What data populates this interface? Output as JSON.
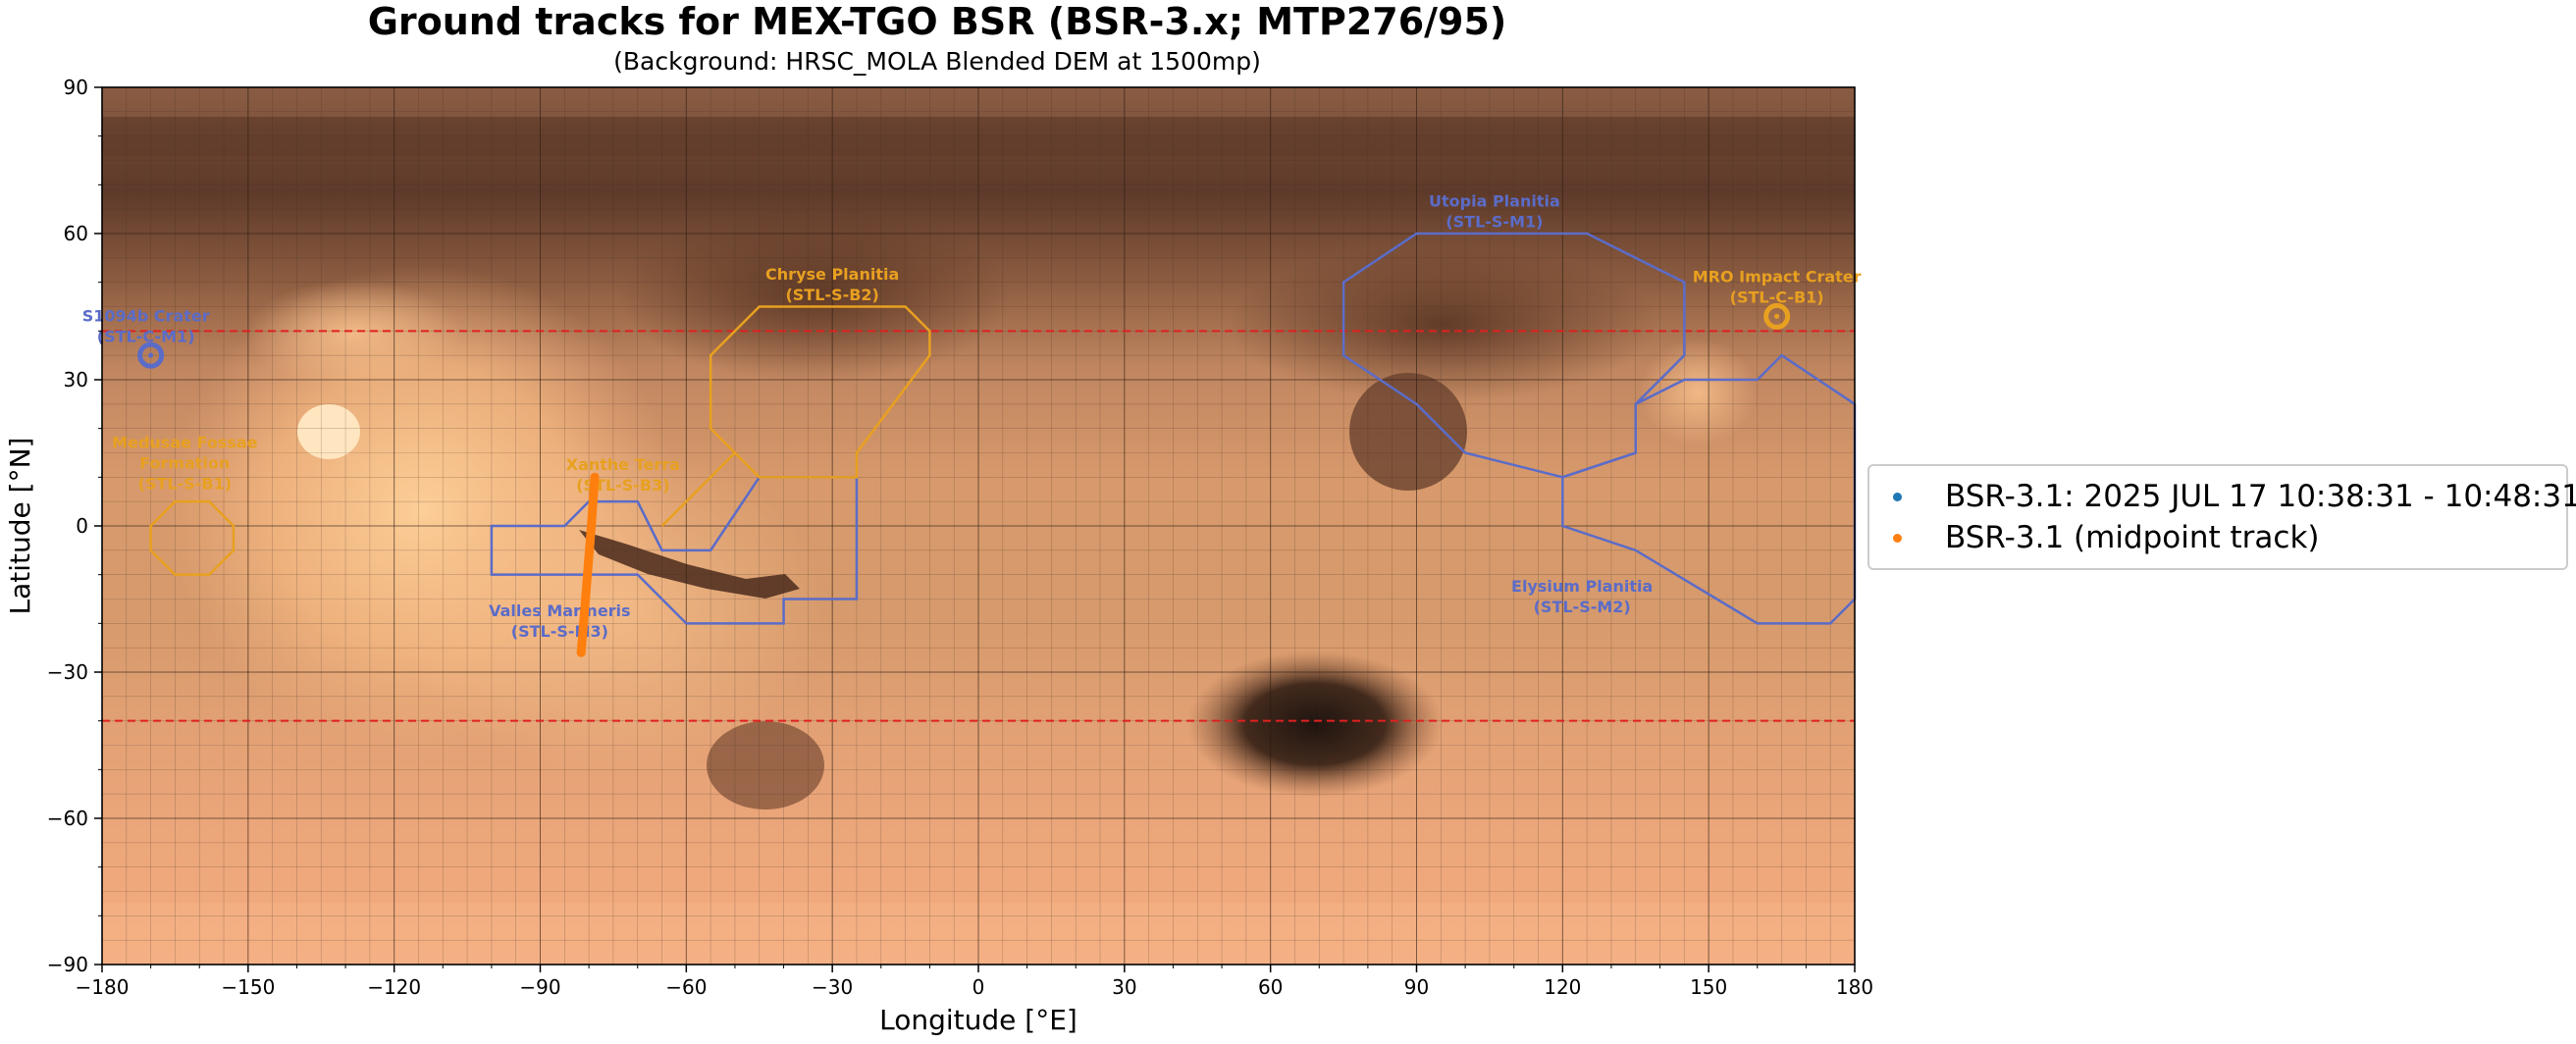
{
  "title": "Ground tracks for MEX-TGO BSR (BSR-3.x; MTP276/95)",
  "subtitle": "(Background: HRSC_MOLA Blended DEM at 1500mp)",
  "colors": {
    "blue_target": "#5b6cc8",
    "orange_target": "#e8a020",
    "track": "#ff7f0e",
    "legend_blue": "#1f77b4",
    "legend_orange": "#ff7f0e",
    "lat_limit_line": "#e02020"
  },
  "chart_data": {
    "type": "scatter",
    "title": "Ground tracks for MEX-TGO BSR (BSR-3.x; MTP276/95)",
    "subtitle": "(Background: HRSC_MOLA Blended DEM at 1500mp)",
    "xlabel": "Longitude [°E]",
    "ylabel": "Latitude [°N]",
    "xlim": [
      -180,
      180
    ],
    "ylim": [
      -90,
      90
    ],
    "xticks": [
      -180,
      -150,
      -120,
      -90,
      -60,
      -30,
      0,
      30,
      60,
      90,
      120,
      150,
      180
    ],
    "yticks": [
      -90,
      -60,
      -30,
      0,
      30,
      60,
      90
    ],
    "xtick_labels": [
      "−180",
      "−150",
      "−120",
      "−90",
      "−60",
      "−30",
      "0",
      "30",
      "60",
      "90",
      "120",
      "150",
      "180"
    ],
    "ytick_labels": [
      "−90",
      "−60",
      "−30",
      "0",
      "30",
      "60",
      "90"
    ],
    "grid": true,
    "reference_lines_lat": [
      40,
      -40
    ],
    "legend_position": "right",
    "series": [
      {
        "name": "BSR-3.1: 2025 JUL 17 10:38:31 - 10:48:31",
        "color": "#1f77b4",
        "points": []
      },
      {
        "name": "BSR-3.1 (midpoint track)",
        "color": "#ff7f0e",
        "points": [
          [
            -78.8,
            10
          ],
          [
            -79.5,
            0
          ],
          [
            -80.3,
            -10
          ],
          [
            -81.1,
            -20
          ],
          [
            -81.6,
            -26
          ]
        ]
      }
    ],
    "targets": [
      {
        "name": "Utopia Planitia",
        "id": "(STL-S-M1)",
        "color": "blue",
        "shape": "polygon",
        "label_pos": [
          106,
          65.5
        ],
        "points": [
          [
            75,
            50
          ],
          [
            90,
            60
          ],
          [
            125,
            60
          ],
          [
            145,
            50
          ],
          [
            145,
            35
          ],
          [
            135,
            25
          ],
          [
            135,
            15
          ],
          [
            120,
            10
          ],
          [
            100,
            15
          ],
          [
            90,
            25
          ],
          [
            75,
            35
          ]
        ]
      },
      {
        "name": "Elysium Planitia",
        "id": "(STL-S-M2)",
        "color": "blue",
        "shape": "polygon",
        "label_pos": [
          124,
          -13.5
        ],
        "points": [
          [
            120,
            10
          ],
          [
            135,
            15
          ],
          [
            135,
            25
          ],
          [
            145,
            30
          ],
          [
            160,
            30
          ],
          [
            165,
            35
          ],
          [
            180,
            25
          ],
          [
            180,
            -15
          ],
          [
            175,
            -20
          ],
          [
            160,
            -20
          ],
          [
            135,
            -5
          ],
          [
            120,
            0
          ]
        ]
      },
      {
        "name": "Valles Marineris",
        "id": "(STL-S-M3)",
        "color": "blue",
        "shape": "polygon",
        "label_pos": [
          -86,
          -18.5
        ],
        "points": [
          [
            -100,
            0
          ],
          [
            -85,
            0
          ],
          [
            -80,
            5
          ],
          [
            -70,
            5
          ],
          [
            -65,
            -5
          ],
          [
            -55,
            -5
          ],
          [
            -45,
            10
          ],
          [
            -25,
            10
          ],
          [
            -25,
            -15
          ],
          [
            -30,
            -15
          ],
          [
            -40,
            -15
          ],
          [
            -40,
            -20
          ],
          [
            -60,
            -20
          ],
          [
            -70,
            -10
          ],
          [
            -100,
            -10
          ]
        ]
      },
      {
        "name": "Chryse Planitia",
        "id": "(STL-S-B2)",
        "color": "orange",
        "shape": "polygon",
        "label_pos": [
          -30,
          50.5
        ],
        "points": [
          [
            -55,
            35
          ],
          [
            -45,
            45
          ],
          [
            -15,
            45
          ],
          [
            -10,
            40
          ],
          [
            -10,
            35
          ],
          [
            -25,
            15
          ],
          [
            -25,
            10
          ],
          [
            -45,
            10
          ],
          [
            -50,
            15
          ],
          [
            -55,
            20
          ]
        ]
      },
      {
        "name": "Xanthe Terra",
        "id": "(STL-S-B3)",
        "color": "orange",
        "shape": "polyline",
        "label_pos": [
          -73,
          11.5
        ],
        "points": [
          [
            -65,
            0
          ],
          [
            -50,
            15
          ]
        ]
      },
      {
        "name": "Medusae Fossae\nFormation",
        "id": "(STL-S-B1)",
        "color": "orange",
        "shape": "polygon",
        "label_pos": [
          -163,
          16
        ],
        "points": [
          [
            -165,
            5
          ],
          [
            -158,
            5
          ],
          [
            -153,
            0
          ],
          [
            -153,
            -5
          ],
          [
            -158,
            -10
          ],
          [
            -165,
            -10
          ],
          [
            -170,
            -5
          ],
          [
            -170,
            0
          ]
        ]
      },
      {
        "name": "S1094b Crater",
        "id": "(STL-C-M1)",
        "color": "blue",
        "shape": "circle",
        "label_pos": [
          -171,
          42
        ],
        "points": [
          [
            -170,
            35
          ]
        ]
      },
      {
        "name": "MRO Impact Crater",
        "id": "(STL-C-B1)",
        "color": "orange",
        "shape": "circle",
        "label_pos": [
          164,
          50
        ],
        "points": [
          [
            164,
            43
          ]
        ]
      }
    ]
  },
  "legend": {
    "item1": "BSR-3.1: 2025 JUL 17 10:38:31 - 10:48:31",
    "item2": "BSR-3.1 (midpoint track)"
  }
}
